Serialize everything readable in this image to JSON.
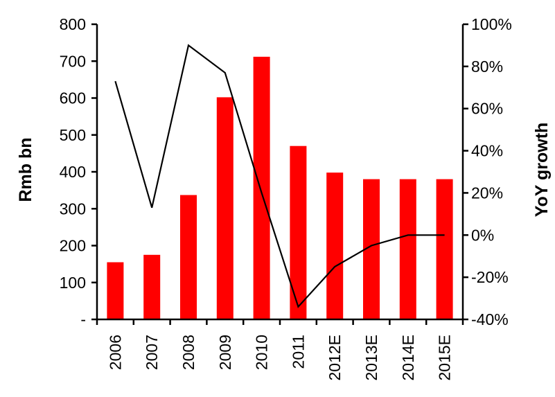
{
  "chart_data": {
    "type": "bar",
    "categories": [
      "2006",
      "2007",
      "2008",
      "2009",
      "2010",
      "2011",
      "2012E",
      "2013E",
      "2014E",
      "2015E"
    ],
    "series": [
      {
        "values": [
          155,
          175,
          337,
          602,
          712,
          470,
          398,
          380,
          380,
          380
        ],
        "color": "#ff0000",
        "axis": "left",
        "kind": "bar"
      },
      {
        "values": [
          73,
          13,
          90,
          77,
          20,
          -34,
          -15,
          -5,
          0,
          0
        ],
        "color": "#000000",
        "axis": "right",
        "kind": "line"
      }
    ],
    "ylabel_left": "Rmb bn",
    "ylabel_right": "YoY growth",
    "ylim_left": [
      0,
      800
    ],
    "ylim_right": [
      -40,
      100
    ],
    "yticks_left": [
      "-",
      "100",
      "200",
      "300",
      "400",
      "500",
      "600",
      "700",
      "800"
    ],
    "yticks_right": [
      "-40%",
      "-20%",
      "0%",
      "20%",
      "40%",
      "60%",
      "80%",
      "100%"
    ],
    "grid": false,
    "legend": "none"
  }
}
